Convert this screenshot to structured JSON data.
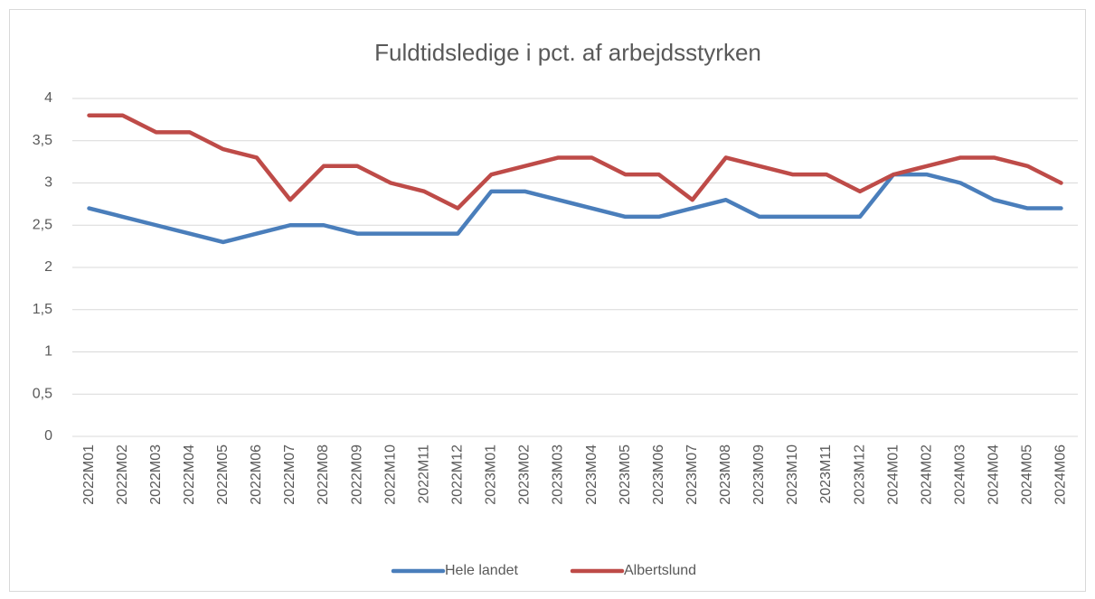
{
  "chart_data": {
    "type": "line",
    "title": "Fuldtidsledige i pct. af arbejdsstyrken",
    "categories": [
      "2022M01",
      "2022M02",
      "2022M03",
      "2022M04",
      "2022M05",
      "2022M06",
      "2022M07",
      "2022M08",
      "2022M09",
      "2022M10",
      "2022M11",
      "2022M12",
      "2023M01",
      "2023M02",
      "2023M03",
      "2023M04",
      "2023M05",
      "2023M06",
      "2023M07",
      "2023M08",
      "2023M09",
      "2023M10",
      "2023M11",
      "2023M12",
      "2024M01",
      "2024M02",
      "2024M03",
      "2024M04",
      "2024M05",
      "2024M06"
    ],
    "series": [
      {
        "name": "Hele landet",
        "color": "#4a7ebb",
        "values": [
          2.7,
          2.6,
          2.5,
          2.4,
          2.3,
          2.4,
          2.5,
          2.5,
          2.4,
          2.4,
          2.4,
          2.4,
          2.9,
          2.9,
          2.8,
          2.7,
          2.6,
          2.6,
          2.7,
          2.8,
          2.6,
          2.6,
          2.6,
          2.6,
          3.1,
          3.1,
          3.0,
          2.8,
          2.7,
          2.7
        ]
      },
      {
        "name": "Albertslund",
        "color": "#be4b48",
        "values": [
          3.8,
          3.8,
          3.6,
          3.6,
          3.4,
          3.3,
          2.8,
          3.2,
          3.2,
          3.0,
          2.9,
          2.7,
          3.1,
          3.2,
          3.3,
          3.3,
          3.1,
          3.1,
          2.8,
          3.3,
          3.2,
          3.1,
          3.1,
          2.9,
          3.1,
          3.2,
          3.3,
          3.3,
          3.2,
          3.0
        ]
      }
    ],
    "ylim": [
      0,
      4
    ],
    "yticks": [
      0,
      {
        "value": 0.5,
        "label": "0,5"
      },
      1,
      {
        "value": 1.5,
        "label": "1,5"
      },
      2,
      {
        "value": 2.5,
        "label": "2,5"
      },
      3,
      {
        "value": 3.5,
        "label": "3,5"
      },
      4
    ],
    "grid": true,
    "legend": "bottom"
  }
}
